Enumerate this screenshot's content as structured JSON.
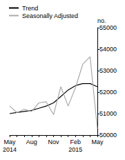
{
  "chart_data": {
    "type": "line",
    "y_label": "no.",
    "categories": [
      "May\n2014",
      null,
      null,
      "Aug",
      null,
      null,
      "Nov",
      null,
      null,
      "Feb\n2015",
      null,
      null,
      "May"
    ],
    "series": [
      {
        "name": "Trend",
        "color": "#000000",
        "values": [
          51000,
          51050,
          51100,
          51150,
          51250,
          51350,
          51500,
          51800,
          52100,
          52300,
          52400,
          52400,
          52250
        ]
      },
      {
        "name": "Seasonally Adjusted",
        "color": "#aaaaaa",
        "values": [
          51350,
          51050,
          51200,
          51100,
          51500,
          51550,
          50950,
          52250,
          51350,
          52200,
          53300,
          53650,
          50300
        ]
      }
    ],
    "ylim": [
      50000,
      55000
    ],
    "yticks": [
      50000,
      51000,
      52000,
      53000,
      54000,
      55000
    ],
    "grid": false,
    "legend": "upper left"
  }
}
